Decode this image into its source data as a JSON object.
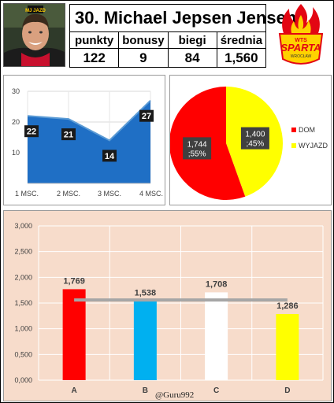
{
  "player": {
    "name": "30. Michael Jepsen Jensen",
    "stat_headers": [
      "punkty",
      "bonusy",
      "biegi",
      "średnia"
    ],
    "stat_values": [
      "122",
      "9",
      "84",
      "1,560"
    ]
  },
  "logo": {
    "team_name": "SPARTA",
    "team_prefix": "WTS",
    "city": "WROCŁAW",
    "colors": {
      "red": "#e30613",
      "yellow": "#ffd200"
    }
  },
  "photo": {
    "shirt_text": "MJ JAZD"
  },
  "credit": "@Guru992",
  "chart_data": [
    {
      "type": "area",
      "categories": [
        "1 MSC.",
        "2 MSC.",
        "3 MSC.",
        "4 MSC."
      ],
      "values": [
        22,
        21,
        14,
        27
      ],
      "ylim": [
        0,
        30
      ],
      "yticks": [
        "30",
        "20",
        "10"
      ],
      "grid": true,
      "colors": {
        "fill": "#1f6fc5",
        "line": "#5b9bd5"
      }
    },
    {
      "type": "pie",
      "slices": [
        {
          "name": "DOM",
          "value": 1.744,
          "label": "1,744\n;55%",
          "color": "#ff0000"
        },
        {
          "name": "WYJAZD",
          "value": 1.4,
          "label": "1,400\n;45%",
          "color": "#ffff00"
        }
      ],
      "legend": "right"
    },
    {
      "type": "bar",
      "categories": [
        "A",
        "B",
        "C",
        "D"
      ],
      "values": [
        1.769,
        1.538,
        1.708,
        1.286
      ],
      "value_labels": [
        "1,769",
        "1,538",
        "1,708",
        "1,286"
      ],
      "colors": [
        "#ff0000",
        "#00b0f0",
        "#ffffff",
        "#ffff00"
      ],
      "average_line": 1.56,
      "ylim": [
        0,
        3
      ],
      "yticks": [
        "3,000",
        "2,500",
        "2,000",
        "1,500",
        "1,000",
        "0,500",
        "0,000"
      ],
      "grid": true
    }
  ]
}
